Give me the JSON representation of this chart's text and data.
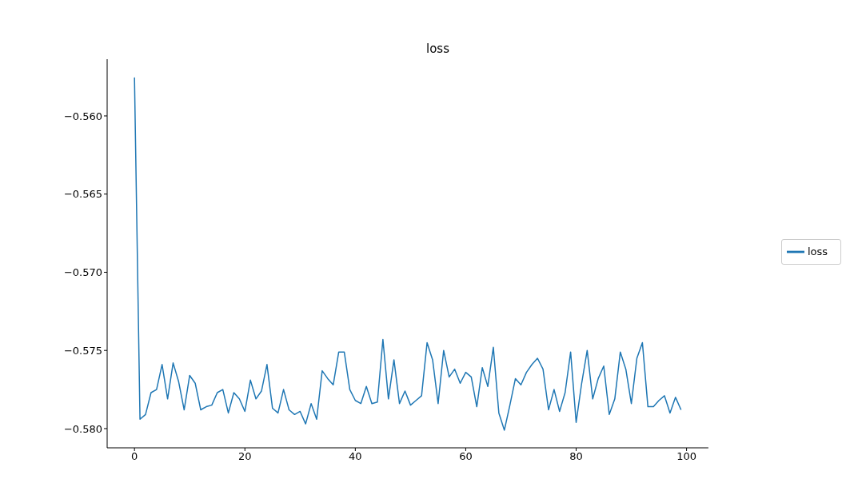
{
  "chart_data": {
    "type": "line",
    "title": "loss",
    "x": [
      0,
      1,
      2,
      3,
      4,
      5,
      6,
      7,
      8,
      9,
      10,
      11,
      12,
      13,
      14,
      15,
      16,
      17,
      18,
      19,
      20,
      21,
      22,
      23,
      24,
      25,
      26,
      27,
      28,
      29,
      30,
      31,
      32,
      33,
      34,
      35,
      36,
      37,
      38,
      39,
      40,
      41,
      42,
      43,
      44,
      45,
      46,
      47,
      48,
      49,
      50,
      51,
      52,
      53,
      54,
      55,
      56,
      57,
      58,
      59,
      60,
      61,
      62,
      63,
      64,
      65,
      66,
      67,
      68,
      69,
      70,
      71,
      72,
      73,
      74,
      75,
      76,
      77,
      78,
      79,
      80,
      81,
      82,
      83,
      84,
      85,
      86,
      87,
      88,
      89,
      90,
      91,
      92,
      93,
      94,
      95,
      96,
      97,
      98,
      99
    ],
    "series": [
      {
        "name": "loss",
        "color": "#1f77b4",
        "values": [
          -0.55754,
          -0.5794,
          -0.5791,
          -0.5777,
          -0.5775,
          -0.5759,
          -0.5781,
          -0.5758,
          -0.577,
          -0.5788,
          -0.5766,
          -0.5771,
          -0.5788,
          -0.5786,
          -0.5785,
          -0.5777,
          -0.5775,
          -0.579,
          -0.5777,
          -0.5781,
          -0.5789,
          -0.5769,
          -0.5781,
          -0.5776,
          -0.5759,
          -0.5787,
          -0.579,
          -0.5775,
          -0.5788,
          -0.5791,
          -0.5789,
          -0.5797,
          -0.5784,
          -0.5794,
          -0.5763,
          -0.5768,
          -0.5772,
          -0.5751,
          -0.5751,
          -0.5775,
          -0.5782,
          -0.5784,
          -0.5773,
          -0.5784,
          -0.5783,
          -0.5743,
          -0.5781,
          -0.5756,
          -0.5784,
          -0.5776,
          -0.5785,
          -0.5782,
          -0.5779,
          -0.5745,
          -0.5756,
          -0.5784,
          -0.575,
          -0.5767,
          -0.5762,
          -0.5771,
          -0.5764,
          -0.5767,
          -0.5786,
          -0.5761,
          -0.5773,
          -0.5748,
          -0.579,
          -0.5801,
          -0.5785,
          -0.5768,
          -0.5772,
          -0.5764,
          -0.5759,
          -0.5755,
          -0.5762,
          -0.5788,
          -0.5775,
          -0.5789,
          -0.5777,
          -0.5751,
          -0.5796,
          -0.5771,
          -0.575,
          -0.5781,
          -0.5768,
          -0.576,
          -0.5791,
          -0.5781,
          -0.5751,
          -0.5762,
          -0.5784,
          -0.5755,
          -0.5745,
          -0.5786,
          -0.5786,
          -0.5782,
          -0.5779,
          -0.579,
          -0.578,
          -0.5788
        ]
      }
    ],
    "xlim": [
      -4.95,
      103.95
    ],
    "xticks": [
      0,
      20,
      40,
      60,
      80,
      100
    ],
    "ylim": [
      -0.58123,
      -0.55637
    ],
    "yticks": [
      {
        "value": -0.58,
        "label": "−0.580"
      },
      {
        "value": -0.575,
        "label": "−0.575"
      },
      {
        "value": -0.57,
        "label": "−0.570"
      },
      {
        "value": -0.565,
        "label": "−0.565"
      },
      {
        "value": -0.56,
        "label": "−0.560"
      }
    ],
    "legend": "right",
    "grid": false,
    "marker": "none",
    "line_style": "solid"
  }
}
